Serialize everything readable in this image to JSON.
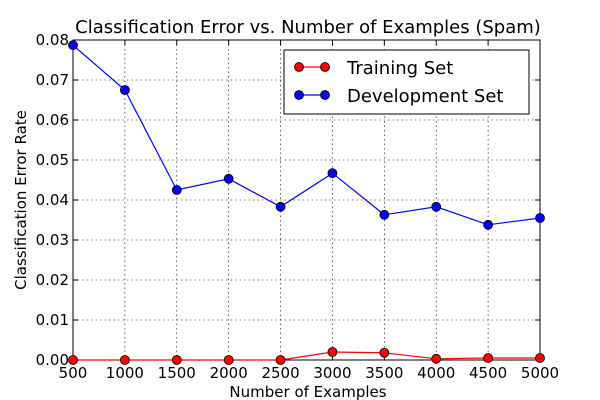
{
  "chart_data": {
    "type": "line",
    "title": "Classification Error vs. Number of Examples (Spam)",
    "xlabel": "Number of Examples",
    "ylabel": "Classification Error Rate",
    "x": [
      500,
      1000,
      1500,
      2000,
      2500,
      3000,
      3500,
      4000,
      4500,
      5000
    ],
    "xlim": [
      500,
      5000
    ],
    "ylim": [
      0.0,
      0.08
    ],
    "xticks": [
      "500",
      "1000",
      "1500",
      "2000",
      "2500",
      "3000",
      "3500",
      "4000",
      "4500",
      "5000"
    ],
    "yticks": [
      "0.00",
      "0.01",
      "0.02",
      "0.03",
      "0.04",
      "0.05",
      "0.06",
      "0.07",
      "0.08"
    ],
    "grid": true,
    "legend_position": "top-right",
    "series": [
      {
        "name": "Training Set",
        "color": "#ff0000",
        "values": [
          0.0,
          0.0,
          0.0,
          0.0,
          0.0,
          0.002,
          0.0018,
          0.0003,
          0.0005,
          0.0005
        ]
      },
      {
        "name": "Development Set",
        "color": "#0000ff",
        "values": [
          0.0787,
          0.0675,
          0.0425,
          0.0453,
          0.0383,
          0.0467,
          0.0363,
          0.0383,
          0.0338,
          0.0355
        ]
      }
    ]
  }
}
